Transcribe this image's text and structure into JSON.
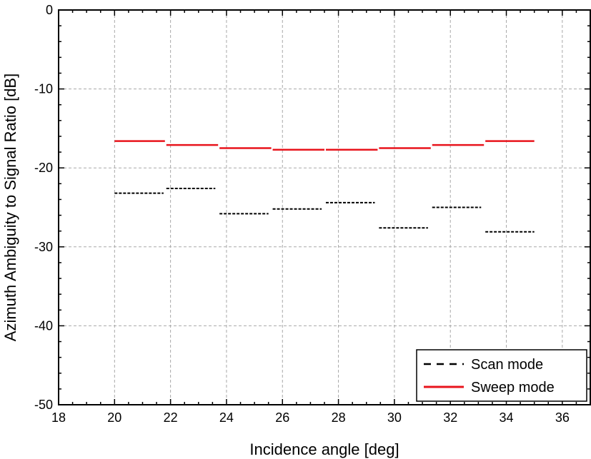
{
  "chart_data": {
    "type": "line",
    "title": "",
    "xlabel": "Incidence angle [deg]",
    "ylabel": "Azimuth Ambiguity to Signal Ratio [dB]",
    "xlim": [
      18,
      37
    ],
    "ylim": [
      -50,
      0
    ],
    "xticks": [
      18,
      20,
      22,
      24,
      26,
      28,
      30,
      32,
      34,
      36
    ],
    "yticks": [
      -50,
      -40,
      -30,
      -20,
      -10,
      0
    ],
    "x_minor_step": 0.5,
    "y_minor_step": 2,
    "grid": true,
    "legend_position": "bottom-right",
    "series": [
      {
        "name": "Scan mode",
        "color": "#000000",
        "style": "dashed",
        "segments": [
          {
            "x": [
              20.0,
              21.75
            ],
            "y": -23.2
          },
          {
            "x": [
              21.85,
              23.6
            ],
            "y": -22.6
          },
          {
            "x": [
              23.75,
              25.5
            ],
            "y": -25.8
          },
          {
            "x": [
              25.65,
              27.4
            ],
            "y": -25.2
          },
          {
            "x": [
              27.55,
              29.3
            ],
            "y": -24.4
          },
          {
            "x": [
              29.45,
              31.2
            ],
            "y": -27.6
          },
          {
            "x": [
              31.35,
              33.1
            ],
            "y": -25.0
          },
          {
            "x": [
              33.25,
              35.0
            ],
            "y": -28.1
          }
        ]
      },
      {
        "name": "Sweep mode",
        "color": "#e8141c",
        "style": "solid",
        "segments": [
          {
            "x": [
              20.0,
              21.8
            ],
            "y": -16.6
          },
          {
            "x": [
              21.85,
              23.7
            ],
            "y": -17.1
          },
          {
            "x": [
              23.75,
              25.6
            ],
            "y": -17.5
          },
          {
            "x": [
              25.65,
              27.5
            ],
            "y": -17.7
          },
          {
            "x": [
              27.55,
              29.4
            ],
            "y": -17.7
          },
          {
            "x": [
              29.45,
              31.3
            ],
            "y": -17.5
          },
          {
            "x": [
              31.35,
              33.2
            ],
            "y": -17.1
          },
          {
            "x": [
              33.25,
              35.0
            ],
            "y": -16.6
          }
        ]
      }
    ]
  }
}
